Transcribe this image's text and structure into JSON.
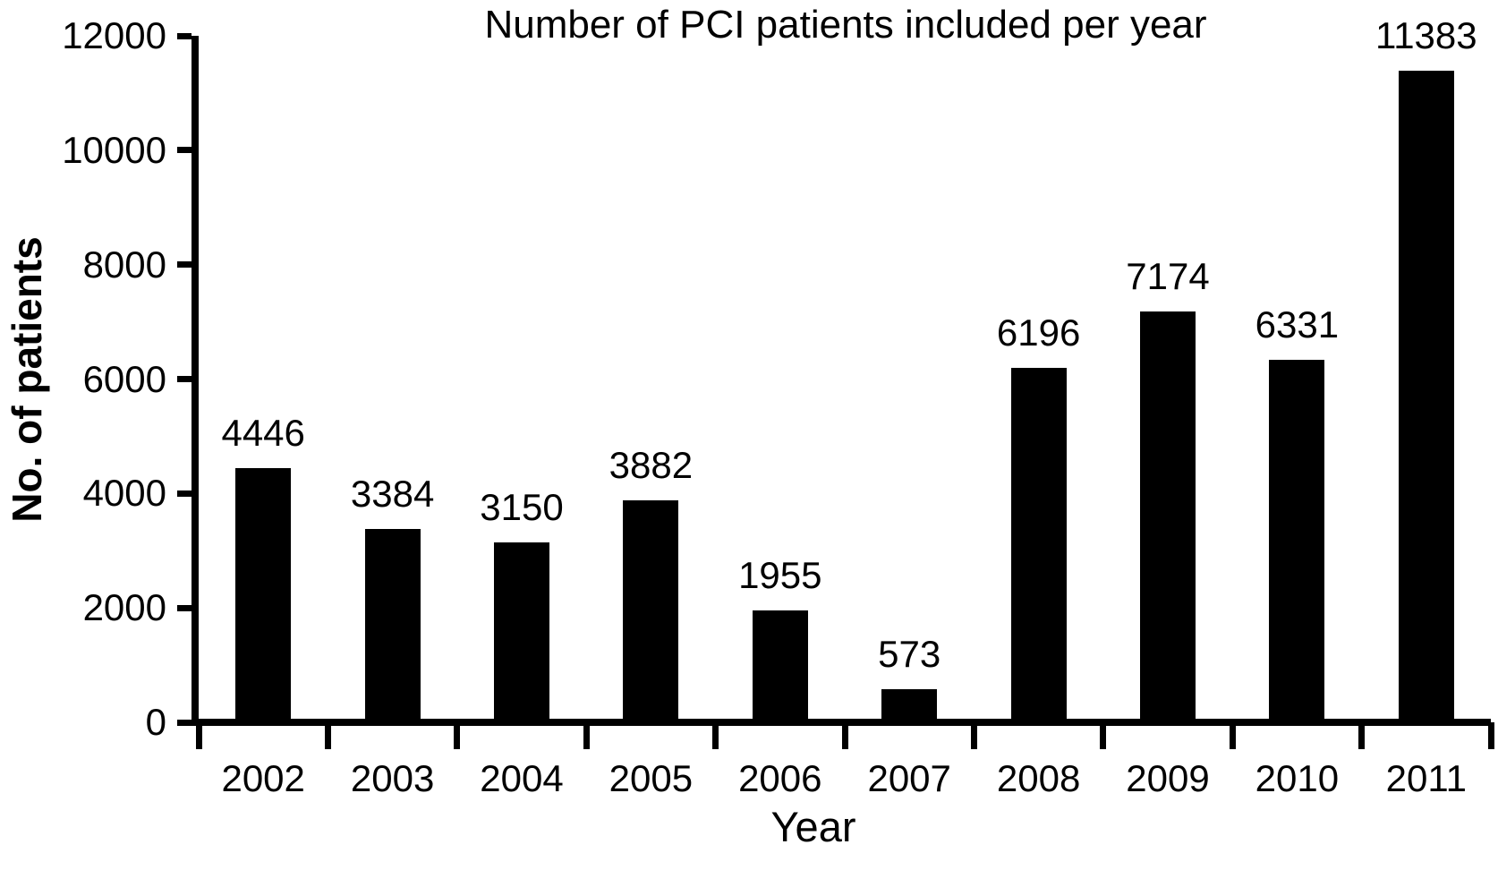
{
  "page": {
    "background_color": "#ffffff",
    "text_color": "#000000"
  },
  "chart_data": {
    "type": "bar",
    "title": "Number of PCI patients included per year",
    "xlabel": "Year",
    "ylabel": "No. of patients",
    "categories": [
      "2002",
      "2003",
      "2004",
      "2005",
      "2006",
      "2007",
      "2008",
      "2009",
      "2010",
      "2011"
    ],
    "values": [
      4446,
      3384,
      3150,
      3882,
      1955,
      573,
      6196,
      7174,
      6331,
      11383
    ],
    "bar_value_labels": [
      "4446",
      "3384",
      "3150",
      "3882",
      "1955",
      "573",
      "6196",
      "7174",
      "6331",
      "11383"
    ],
    "ylim": [
      0,
      12000
    ],
    "yticks": [
      0,
      2000,
      4000,
      6000,
      8000,
      10000,
      12000
    ],
    "ytick_labels": [
      "0",
      "2000",
      "4000",
      "6000",
      "8000",
      "10000",
      "12000"
    ],
    "grid": false,
    "legend": null,
    "bar_color": "#000000",
    "axis_color": "#000000"
  }
}
